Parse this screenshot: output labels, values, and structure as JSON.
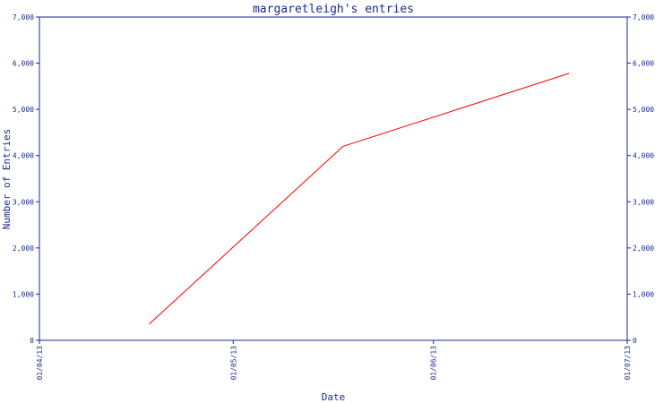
{
  "chart_data": {
    "type": "line",
    "title": "margaretleigh's entries",
    "xlabel": "Date",
    "ylabel": "Number of Entries",
    "ylim": [
      0,
      7000
    ],
    "y_ticks": [
      0,
      1000,
      2000,
      3000,
      4000,
      5000,
      6000,
      7000
    ],
    "y_tick_labels": [
      "0",
      "1,000",
      "2,000",
      "3,000",
      "4,000",
      "5,000",
      "6,000",
      "7,000"
    ],
    "x_range": [
      "2013-04-01",
      "2013-07-01"
    ],
    "x_ticks": [
      "2013-04-01",
      "2013-05-01",
      "2013-06-01",
      "2013-07-01"
    ],
    "x_tick_labels": [
      "01/04/13",
      "01/05/13",
      "01/06/13",
      "01/07/13"
    ],
    "series": [
      {
        "color": "#ff0000",
        "points": [
          {
            "x": "2013-04-18",
            "y": 350
          },
          {
            "x": "2013-05-18",
            "y": 4200
          },
          {
            "x": "2013-06-22",
            "y": 5780
          }
        ]
      }
    ],
    "axis_color": "#1c2a8c",
    "grid": false
  }
}
